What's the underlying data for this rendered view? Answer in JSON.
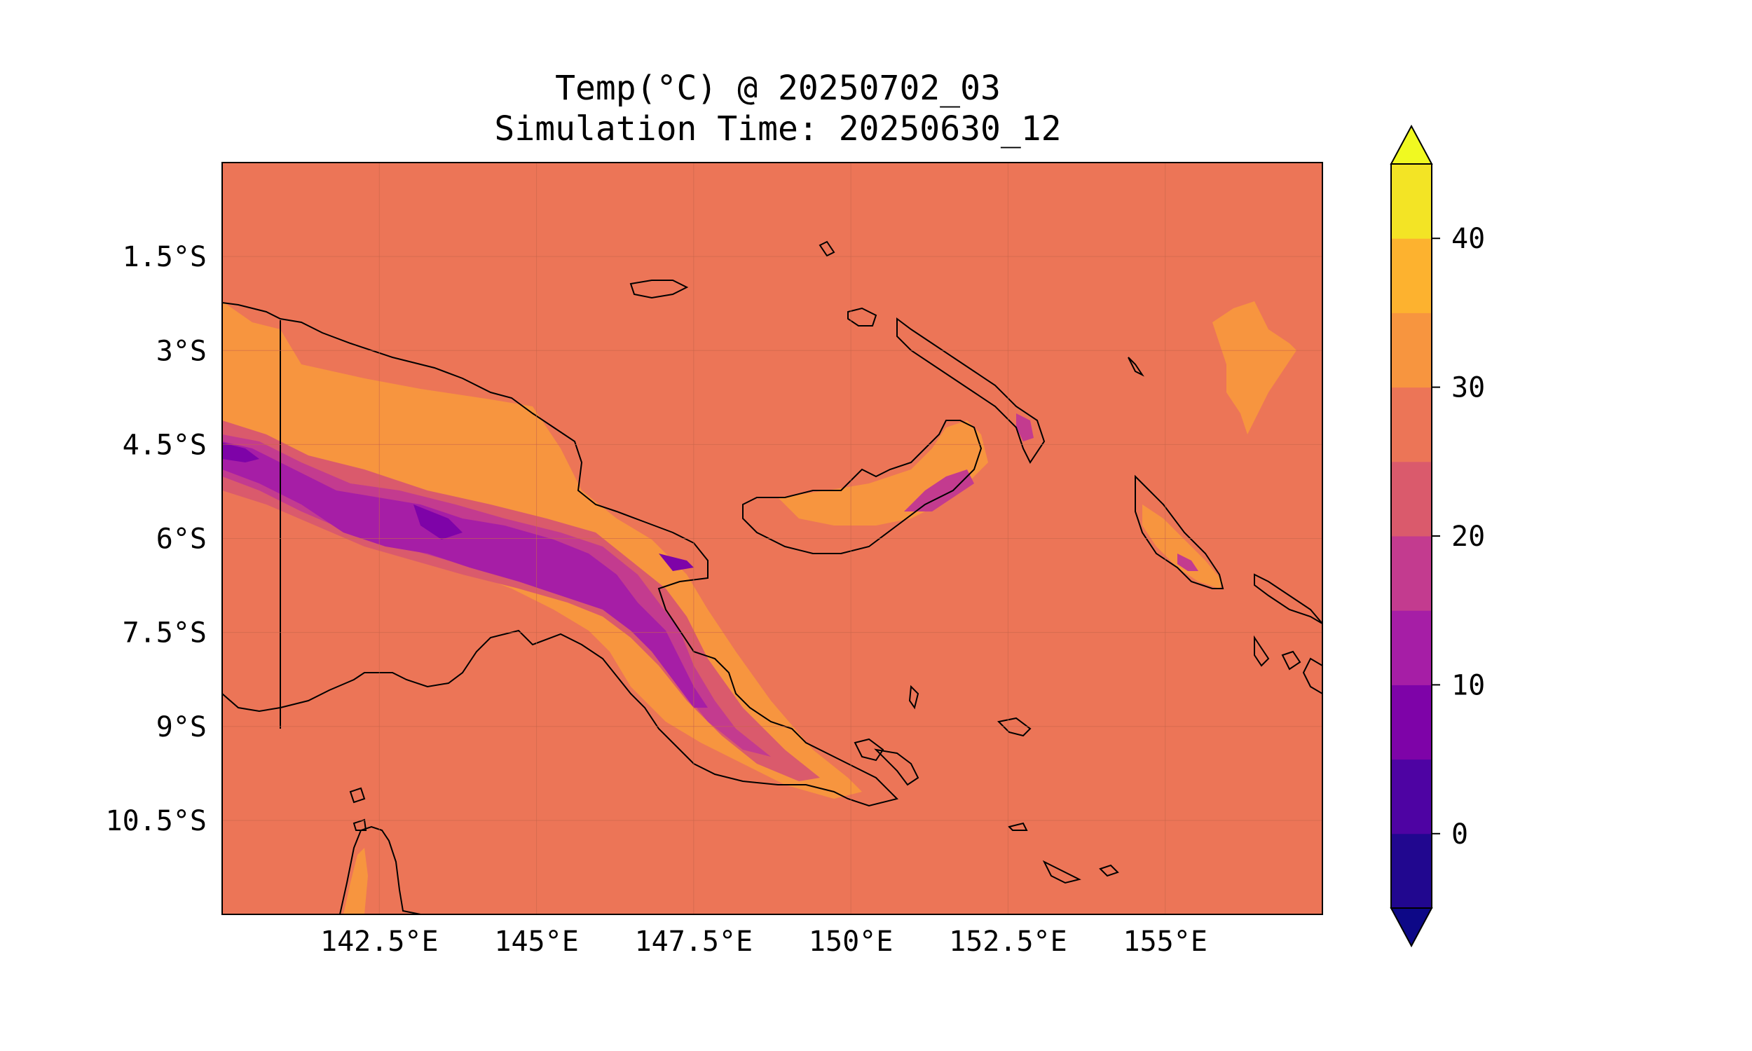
{
  "title": {
    "line1": "Temp(°C) @ 20250702_03",
    "line2": "Simulation Time: 20250630_12"
  },
  "map": {
    "variable": "Temperature",
    "units": "°C",
    "extent": {
      "lon": [
        140.0,
        157.5
      ],
      "lat": [
        -12.0,
        0.0
      ]
    },
    "longitude_ticks": [
      {
        "value": 142.5,
        "label": "142.5°E"
      },
      {
        "value": 145.0,
        "label": "145°E"
      },
      {
        "value": 147.5,
        "label": "147.5°E"
      },
      {
        "value": 150.0,
        "label": "150°E"
      },
      {
        "value": 152.5,
        "label": "152.5°E"
      },
      {
        "value": 155.0,
        "label": "155°E"
      }
    ],
    "latitude_ticks": [
      {
        "value": -1.5,
        "label": "1.5°S"
      },
      {
        "value": -3.0,
        "label": "3°S"
      },
      {
        "value": -4.5,
        "label": "4.5°S"
      },
      {
        "value": -6.0,
        "label": "6°S"
      },
      {
        "value": -7.5,
        "label": "7.5°S"
      },
      {
        "value": -9.0,
        "label": "9°S"
      },
      {
        "value": -10.5,
        "label": "10.5°S"
      }
    ],
    "gridlines": true,
    "background_level_color": "#ec7557"
  },
  "colorbar": {
    "vmin": -5,
    "vmax": 45,
    "extend": "both",
    "levels": [
      {
        "from": -5,
        "to": 0,
        "color": "#21078f"
      },
      {
        "from": 0,
        "to": 5,
        "color": "#4e03a3"
      },
      {
        "from": 5,
        "to": 10,
        "color": "#7e03a8"
      },
      {
        "from": 10,
        "to": 15,
        "color": "#a61ea6"
      },
      {
        "from": 15,
        "to": 20,
        "color": "#c33b8f"
      },
      {
        "from": 20,
        "to": 25,
        "color": "#da5a6c"
      },
      {
        "from": 25,
        "to": 30,
        "color": "#ec7557"
      },
      {
        "from": 30,
        "to": 35,
        "color": "#f7953f"
      },
      {
        "from": 35,
        "to": 40,
        "color": "#fdb22f"
      },
      {
        "from": 40,
        "to": 45,
        "color": "#f3e425"
      }
    ],
    "under_color": "#0d0887",
    "over_color": "#f0f921",
    "ticks": [
      {
        "value": 0,
        "label": "0"
      },
      {
        "value": 10,
        "label": "10"
      },
      {
        "value": 20,
        "label": "20"
      },
      {
        "value": 30,
        "label": "30"
      },
      {
        "value": 40,
        "label": "40"
      }
    ]
  }
}
